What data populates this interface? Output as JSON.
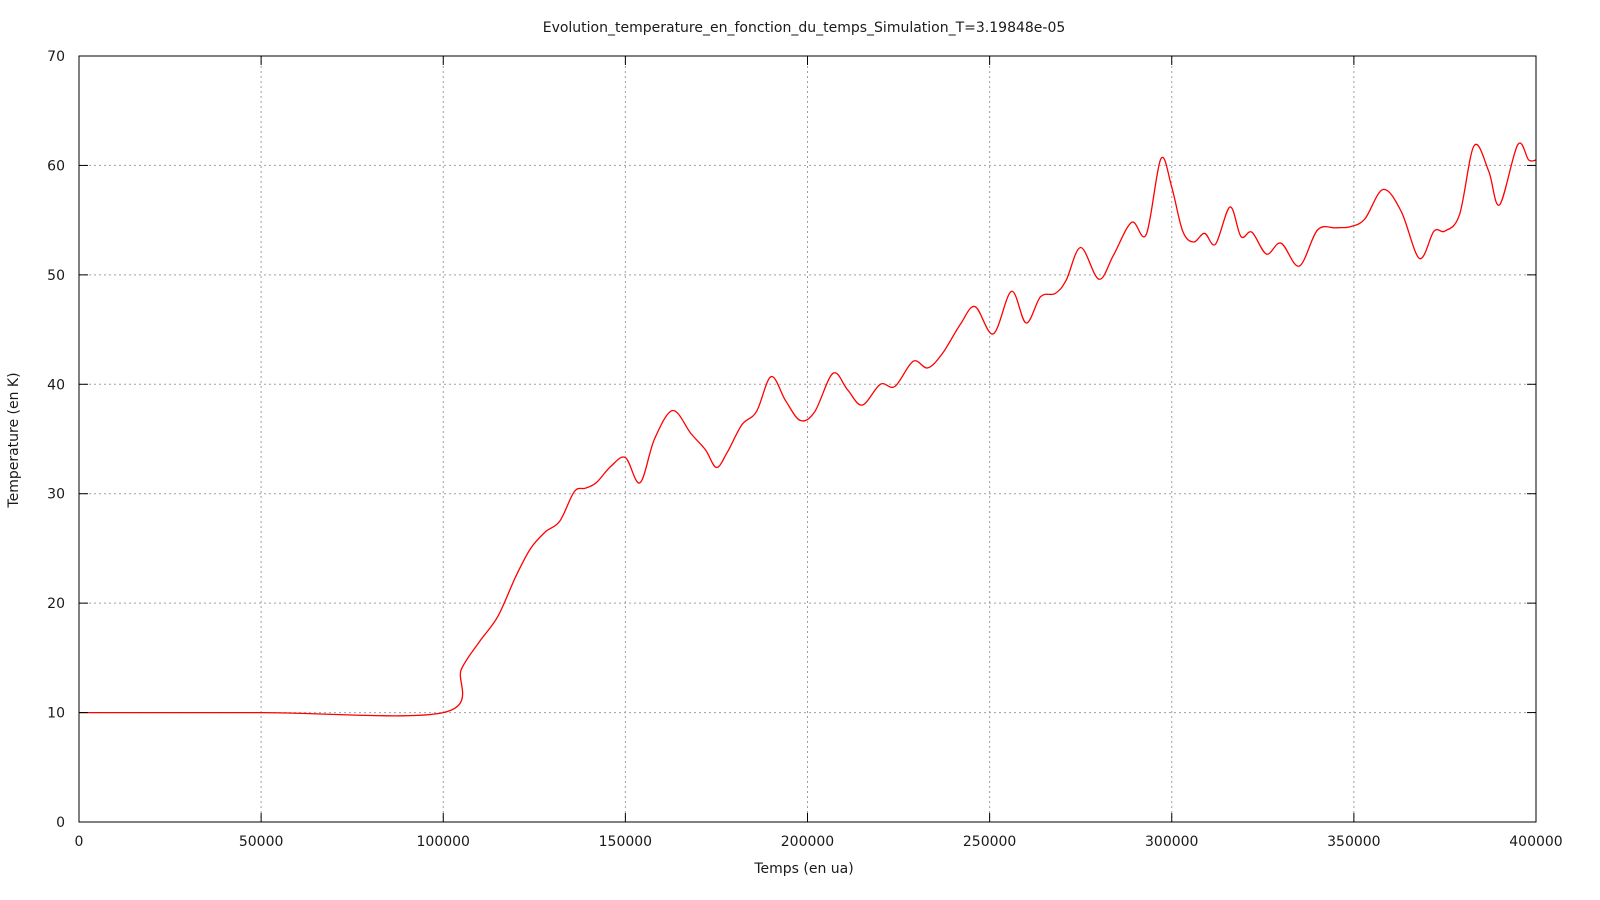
{
  "chart_data": {
    "type": "line",
    "title": "Evolution_temperature_en_fonction_du_temps_Simulation_T=3.19848e-05",
    "xlabel": "Temps (en ua)",
    "ylabel": "Temperature (en K)",
    "xlim": [
      0,
      400000
    ],
    "ylim": [
      0,
      70
    ],
    "xticks": [
      0,
      50000,
      100000,
      150000,
      200000,
      250000,
      300000,
      350000,
      400000
    ],
    "yticks": [
      0,
      10,
      20,
      30,
      40,
      50,
      60,
      70
    ],
    "grid": true,
    "legend": "none",
    "series": [
      {
        "color": "#ff0000",
        "x": [
          0,
          50000,
          100000,
          105000,
          110000,
          115000,
          120000,
          124000,
          128000,
          132000,
          136000,
          139000,
          142000,
          146000,
          150000,
          154000,
          158000,
          163000,
          168000,
          172000,
          175000,
          178000,
          182000,
          186000,
          190000,
          194000,
          198000,
          202000,
          207000,
          211000,
          215000,
          220000,
          224000,
          229000,
          233000,
          237000,
          242000,
          246000,
          251000,
          256000,
          260000,
          264000,
          268000,
          271000,
          275000,
          280000,
          284000,
          289000,
          293000,
          297000,
          300000,
          303000,
          306000,
          309000,
          312000,
          316000,
          319000,
          322000,
          326000,
          330000,
          335000,
          340000,
          345000,
          349000,
          353000,
          358000,
          363000,
          368000,
          372000,
          375000,
          379000,
          383000,
          387000,
          390000,
          395000,
          398000,
          400000
        ],
        "y": [
          10,
          10,
          10,
          14,
          16.5,
          18.8,
          22.5,
          25,
          26.5,
          27.5,
          30.2,
          30.5,
          31,
          32.5,
          33.3,
          31,
          35,
          37.6,
          35.5,
          34,
          32.4,
          33.8,
          36.3,
          37.5,
          40.7,
          38.5,
          36.7,
          37.5,
          41,
          39.5,
          38.1,
          40,
          39.8,
          42.1,
          41.5,
          42.8,
          45.5,
          47.1,
          44.6,
          48.5,
          45.6,
          48,
          48.3,
          49.5,
          52.5,
          49.6,
          51.8,
          54.8,
          53.7,
          60.6,
          58,
          54,
          53,
          53.8,
          52.8,
          56.2,
          53.5,
          53.9,
          51.9,
          52.9,
          50.8,
          54.1,
          54.3,
          54.4,
          55.1,
          57.8,
          55.8,
          51.5,
          54,
          54,
          55.5,
          61.8,
          59.5,
          56.4,
          61.9,
          60.5,
          60.5
        ]
      }
    ]
  }
}
